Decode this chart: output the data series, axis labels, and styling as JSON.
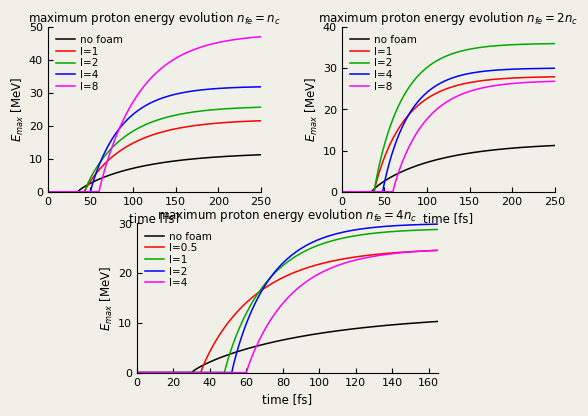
{
  "top_left": {
    "title": "maximum proton energy evolution $n_{fe}=n_c$",
    "xlim": [
      0,
      250
    ],
    "ylim": [
      0,
      50
    ],
    "xticks": [
      0,
      50,
      100,
      150,
      200,
      250
    ],
    "yticks": [
      0,
      10,
      20,
      30,
      40,
      50
    ],
    "xlabel": "time [fs]",
    "ylabel": "$E_{max}$ [MeV]",
    "series": [
      {
        "label": "no foam",
        "color": "#000000",
        "onset": 35,
        "A": 12.0,
        "k": 0.012,
        "power": 0.85
      },
      {
        "label": "l=1",
        "color": "#ff0000",
        "onset": 43,
        "A": 22.0,
        "k": 0.018,
        "power": 0.9
      },
      {
        "label": "l=2",
        "color": "#00aa00",
        "onset": 43,
        "A": 26.0,
        "k": 0.02,
        "power": 0.9
      },
      {
        "label": "l=4",
        "color": "#0000ff",
        "onset": 50,
        "A": 32.0,
        "k": 0.025,
        "power": 0.92
      },
      {
        "label": "l=8",
        "color": "#ff00ff",
        "onset": 60,
        "A": 48.0,
        "k": 0.02,
        "power": 0.95
      }
    ]
  },
  "top_right": {
    "title": "maximum proton energy evolution $n_{fe}=2n_c$",
    "xlim": [
      0,
      250
    ],
    "ylim": [
      0,
      40
    ],
    "xticks": [
      0,
      50,
      100,
      150,
      200,
      250
    ],
    "yticks": [
      0,
      10,
      20,
      30,
      40
    ],
    "xlabel": "time [fs]",
    "ylabel": "$E_{max}$ [MeV]",
    "series": [
      {
        "label": "no foam",
        "color": "#000000",
        "onset": 35,
        "A": 12.0,
        "k": 0.012,
        "power": 0.85
      },
      {
        "label": "l=1",
        "color": "#ff0000",
        "onset": 38,
        "A": 28.0,
        "k": 0.025,
        "power": 0.9
      },
      {
        "label": "l=2",
        "color": "#00aa00",
        "onset": 38,
        "A": 36.0,
        "k": 0.028,
        "power": 0.92
      },
      {
        "label": "l=4",
        "color": "#0000ff",
        "onset": 48,
        "A": 30.0,
        "k": 0.03,
        "power": 0.93
      },
      {
        "label": "l=8",
        "color": "#ff00ff",
        "onset": 60,
        "A": 27.0,
        "k": 0.025,
        "power": 0.93
      }
    ]
  },
  "bottom": {
    "title": "maximum proton energy evolution $n_{fe}=4n_c$",
    "xlim": [
      0,
      165
    ],
    "ylim": [
      0,
      30
    ],
    "xticks": [
      0,
      20,
      40,
      60,
      80,
      100,
      120,
      140,
      160
    ],
    "yticks": [
      0,
      10,
      20,
      30
    ],
    "xlabel": "time [fs]",
    "ylabel": "$E_{max}$ [MeV]",
    "series": [
      {
        "label": "no foam",
        "color": "#000000",
        "onset": 30,
        "A": 12.0,
        "k": 0.013,
        "power": 0.82
      },
      {
        "label": "l=0.5",
        "color": "#ff0000",
        "onset": 35,
        "A": 25.0,
        "k": 0.03,
        "power": 0.9
      },
      {
        "label": "l=1",
        "color": "#00aa00",
        "onset": 48,
        "A": 29.0,
        "k": 0.04,
        "power": 0.92
      },
      {
        "label": "l=2",
        "color": "#0000ff",
        "onset": 52,
        "A": 30.0,
        "k": 0.045,
        "power": 0.93
      },
      {
        "label": "l=4",
        "color": "#ff00ff",
        "onset": 60,
        "A": 25.0,
        "k": 0.038,
        "power": 0.93
      }
    ]
  },
  "bg_color": "#f0f0e8",
  "title_fontsize": 8.5,
  "label_fontsize": 8.5,
  "tick_fontsize": 8,
  "legend_fontsize": 7.5
}
